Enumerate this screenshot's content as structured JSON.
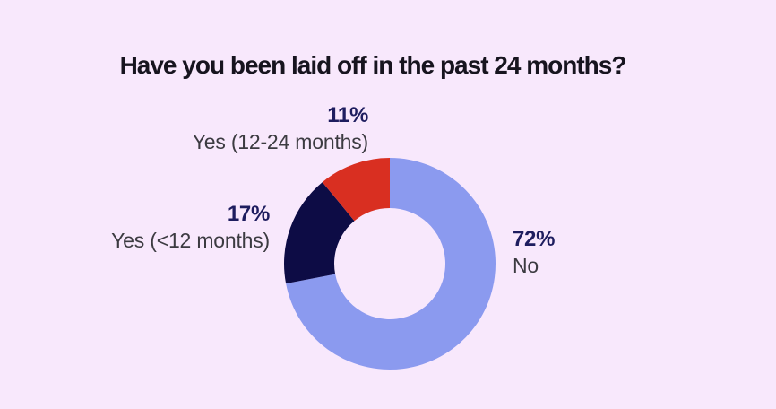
{
  "chart_data": {
    "type": "pie",
    "subtype": "donut",
    "title": "Have you been laid off in the past 24 months?",
    "start_angle_deg": 0,
    "direction": "clockwise",
    "legend_position": "labels-around-chart",
    "background_color": "#F8E8FC",
    "title_color": "#17141F",
    "pct_text_color": "#1E1D5F",
    "category_text_color": "#3C3B41",
    "segments": [
      {
        "label": "No",
        "pct_label": "72%",
        "value": 72,
        "color": "#8B9AEF"
      },
      {
        "label": "Yes (<12 months)",
        "pct_label": "17%",
        "value": 17,
        "color": "#0D0C45"
      },
      {
        "label": "Yes (12-24 months)",
        "pct_label": "11%",
        "value": 11,
        "color": "#D92F21"
      }
    ]
  }
}
